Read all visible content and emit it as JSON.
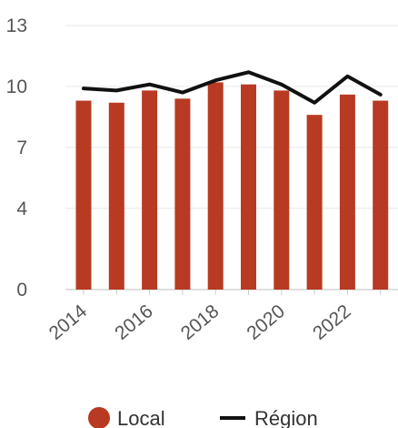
{
  "chart_data": {
    "type": "bar",
    "x": [
      2014,
      2015,
      2016,
      2017,
      2018,
      2019,
      2020,
      2021,
      2022,
      2023
    ],
    "x_tick_labels": [
      "2014",
      "2016",
      "2018",
      "2020",
      "2022"
    ],
    "y_ticks": [
      0,
      4,
      7,
      10,
      13
    ],
    "ylim": [
      0,
      13
    ],
    "grid": true,
    "legend_position": "bottom",
    "series": [
      {
        "name": "Local",
        "kind": "bar",
        "color": "#b83a22",
        "values": [
          9.3,
          9.2,
          9.8,
          9.4,
          10.2,
          10.1,
          9.8,
          8.6,
          9.6,
          9.3
        ]
      },
      {
        "name": "Région",
        "kind": "line",
        "color": "#111111",
        "values": [
          9.9,
          9.8,
          10.1,
          9.7,
          10.3,
          10.7,
          10.1,
          9.2,
          10.5,
          9.6
        ]
      }
    ]
  }
}
